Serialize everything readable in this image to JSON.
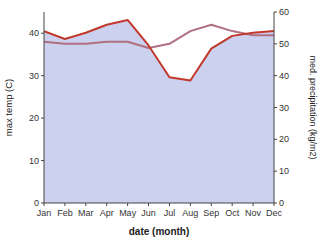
{
  "chart_data": {
    "type": "line",
    "categories": [
      "Jan",
      "Feb",
      "Mar",
      "Apr",
      "May",
      "Jun",
      "Jul",
      "Aug",
      "Sep",
      "Oct",
      "Nov",
      "Dec"
    ],
    "xlabel": "date (month)",
    "ylabel": "max temp (C)",
    "y2label": "med. precipitation (kg/m2)",
    "ylim": [
      0,
      45
    ],
    "yticks": [
      0,
      10,
      20,
      30,
      40
    ],
    "y2lim": [
      0,
      60
    ],
    "y2ticks": [
      0,
      10,
      20,
      30,
      40,
      50,
      60
    ],
    "grid": false,
    "series": [
      {
        "type": "area",
        "color": "#b0b8e8",
        "values": [
          40.5,
          38.5,
          40.0,
          42.0,
          43.0,
          37.0,
          29.5,
          29.0,
          36.5,
          39.5,
          40.0,
          40.5
        ]
      },
      {
        "type": "line",
        "color": "#b07080",
        "values": [
          38.0,
          37.5,
          37.5,
          38.0,
          38.0,
          36.5,
          37.5,
          40.5,
          42.0,
          40.5,
          39.5,
          39.5
        ]
      },
      {
        "type": "line",
        "color": "#c0392b",
        "axis": "y2",
        "values": [
          54.0,
          51.5,
          53.5,
          56.0,
          57.5,
          49.5,
          39.5,
          38.5,
          48.5,
          52.5,
          53.5,
          54.0
        ]
      }
    ]
  }
}
